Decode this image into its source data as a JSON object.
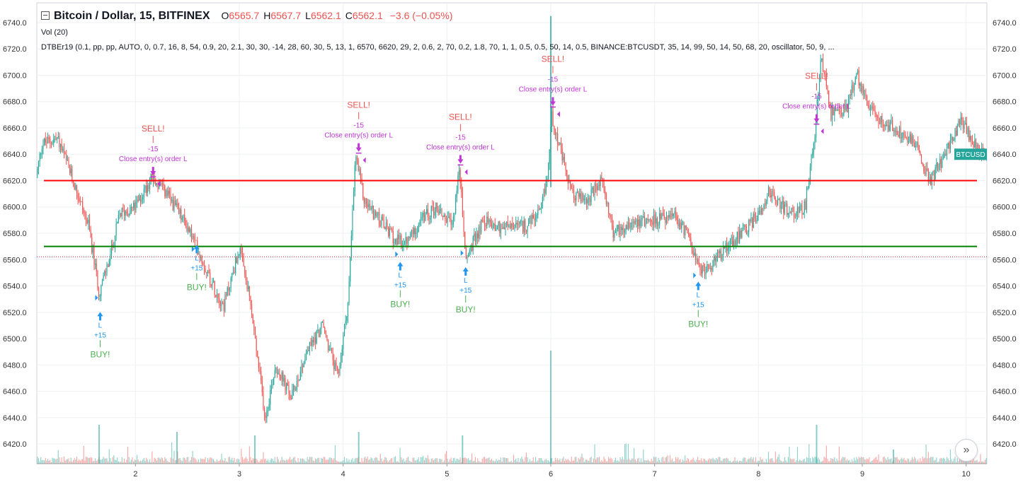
{
  "header": {
    "symbol": "Bitcoin / Dollar, 15, BITFINEX",
    "o_label": "O",
    "o_value": "6565.7",
    "h_label": "H",
    "h_value": "6567.7",
    "l_label": "L",
    "l_value": "6562.1",
    "c_label": "C",
    "c_value": "6562.1",
    "change": "−3.6 (−0.05%)"
  },
  "indicators": {
    "volume": "Vol (20)",
    "strategy": "DTBEr19 (0.1, pp, pp, AUTO, 0, 0.7, 16, 8, 54, 0.9, 20, 2.1, 30, 30, -14, 28, 60, 30, 5, 13, 1, 6570, 6620, 29, 2, 0.6, 2, 70, 0.2, 1.8, 70, 1, 1, 0.5, 0.5, 50, 14, 0.5, BINANCE:BTCUSDT, 35, 14, 99, 50, 14, 50, 68, 20, oscillator, 50, 9, ..."
  },
  "colors": {
    "up": "#26a69a",
    "down": "#ef5350",
    "buy": "#2196f3",
    "buy_text": "#4caf50",
    "sell": "#ef5350",
    "close": "#c035d6",
    "red_line": "#ff0000",
    "green_line": "#008000"
  },
  "icons": {
    "scroll": "double-chevron-right-icon"
  },
  "scroll_glyph": "»",
  "chart_data": {
    "type": "candlestick",
    "ylim": [
      6405,
      6755
    ],
    "xlim": [
      1.05,
      10.2
    ],
    "y_ticks": [
      "6420.0",
      "6440.0",
      "6460.0",
      "6480.0",
      "6500.0",
      "6520.0",
      "6540.0",
      "6560.0",
      "6580.0",
      "6600.0",
      "6620.0",
      "6640.0",
      "6660.0",
      "6680.0",
      "6700.0",
      "6720.0",
      "6740.0"
    ],
    "x_ticks": [
      "2",
      "3",
      "4",
      "5",
      "6",
      "7",
      "8",
      "9",
      "10"
    ],
    "price_path": [
      [
        1.05,
        6625
      ],
      [
        1.1,
        6648
      ],
      [
        1.25,
        6652
      ],
      [
        1.4,
        6620
      ],
      [
        1.55,
        6585
      ],
      [
        1.65,
        6535
      ],
      [
        1.75,
        6560
      ],
      [
        1.85,
        6595
      ],
      [
        2.0,
        6600
      ],
      [
        2.15,
        6622
      ],
      [
        2.3,
        6610
      ],
      [
        2.5,
        6585
      ],
      [
        2.6,
        6568
      ],
      [
        2.75,
        6540
      ],
      [
        2.85,
        6525
      ],
      [
        3.0,
        6568
      ],
      [
        3.1,
        6530
      ],
      [
        3.2,
        6470
      ],
      [
        3.25,
        6440
      ],
      [
        3.35,
        6480
      ],
      [
        3.5,
        6455
      ],
      [
        3.65,
        6490
      ],
      [
        3.8,
        6510
      ],
      [
        3.95,
        6470
      ],
      [
        4.05,
        6530
      ],
      [
        4.12,
        6640
      ],
      [
        4.2,
        6605
      ],
      [
        4.35,
        6590
      ],
      [
        4.5,
        6575
      ],
      [
        4.6,
        6572
      ],
      [
        4.75,
        6590
      ],
      [
        4.9,
        6600
      ],
      [
        5.05,
        6585
      ],
      [
        5.12,
        6630
      ],
      [
        5.18,
        6560
      ],
      [
        5.35,
        6590
      ],
      [
        5.5,
        6585
      ],
      [
        5.75,
        6585
      ],
      [
        5.9,
        6595
      ],
      [
        5.97,
        6625
      ],
      [
        6.01,
        6670
      ],
      [
        6.1,
        6640
      ],
      [
        6.2,
        6610
      ],
      [
        6.35,
        6605
      ],
      [
        6.5,
        6620
      ],
      [
        6.6,
        6580
      ],
      [
        6.8,
        6590
      ],
      [
        7.0,
        6590
      ],
      [
        7.2,
        6592
      ],
      [
        7.35,
        6575
      ],
      [
        7.42,
        6552
      ],
      [
        7.55,
        6555
      ],
      [
        7.7,
        6572
      ],
      [
        7.85,
        6580
      ],
      [
        8.0,
        6595
      ],
      [
        8.1,
        6612
      ],
      [
        8.3,
        6595
      ],
      [
        8.45,
        6600
      ],
      [
        8.55,
        6660
      ],
      [
        8.6,
        6715
      ],
      [
        8.7,
        6670
      ],
      [
        8.85,
        6675
      ],
      [
        8.95,
        6700
      ],
      [
        9.1,
        6670
      ],
      [
        9.3,
        6660
      ],
      [
        9.5,
        6650
      ],
      [
        9.65,
        6620
      ],
      [
        9.8,
        6640
      ],
      [
        9.95,
        6665
      ],
      [
        10.15,
        6640
      ]
    ],
    "current_price": 6562.1,
    "horizontal_levels": [
      6620,
      6570
    ],
    "last_price_label": "BTCUSD",
    "signals": [
      {
        "x": 1.66,
        "price": 6517,
        "type": "buy",
        "text": "BUY!",
        "qty": "+15",
        "letter": "L",
        "arrow_price": 6531
      },
      {
        "x": 2.17,
        "price": 6625,
        "type": "sell",
        "text": "SELL!",
        "close": "Close entry(s) order L",
        "qty": "-15"
      },
      {
        "x": 2.59,
        "price": 6568,
        "type": "buy",
        "text": "BUY!",
        "qty": "+15",
        "letter": "L",
        "arrow_price": 6568
      },
      {
        "x": 4.15,
        "price": 6643,
        "type": "sell",
        "text": "SELL!",
        "close": "Close entry(s) order L",
        "qty": "-15"
      },
      {
        "x": 4.55,
        "price": 6555,
        "type": "buy",
        "text": "BUY!",
        "qty": "+15",
        "letter": "L",
        "arrow_price": 6564
      },
      {
        "x": 5.13,
        "price": 6634,
        "type": "sell",
        "text": "SELL!",
        "close": "Close entry(s) order L",
        "qty": "-15"
      },
      {
        "x": 5.18,
        "price": 6551,
        "type": "buy",
        "text": "BUY!",
        "qty": "+15",
        "letter": "L",
        "arrow_price": 6565
      },
      {
        "x": 6.02,
        "price": 6678,
        "type": "sell",
        "text": "SELL!",
        "close": "Close entry(s) order L",
        "qty": "-15"
      },
      {
        "x": 7.42,
        "price": 6540,
        "type": "buy",
        "text": "BUY!",
        "qty": "+15",
        "letter": "L",
        "arrow_price": 6548
      },
      {
        "x": 8.56,
        "price": 6665,
        "type": "sell",
        "text": "SELL!",
        "close": "Close entry(s) order L",
        "qty": "-15"
      }
    ]
  }
}
